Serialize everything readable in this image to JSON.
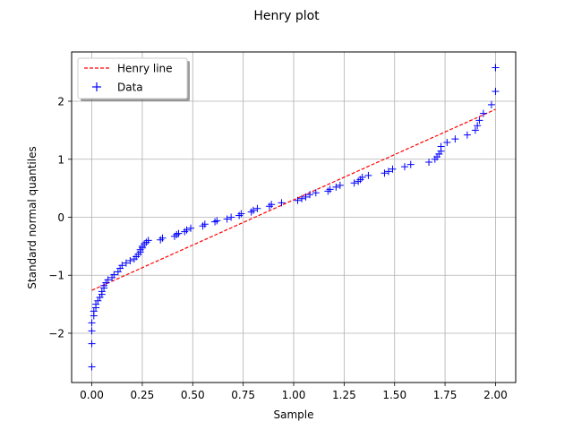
{
  "chart_data": {
    "type": "scatter",
    "title": "Henry plot",
    "xlabel": "Sample",
    "ylabel": "Standard normal quantiles",
    "xlim": [
      -0.1,
      2.1
    ],
    "ylim": [
      -2.85,
      2.85
    ],
    "xticks": [
      0.0,
      0.25,
      0.5,
      0.75,
      1.0,
      1.25,
      1.5,
      1.75,
      2.0
    ],
    "xtick_labels": [
      "0.00",
      "0.25",
      "0.50",
      "0.75",
      "1.00",
      "1.25",
      "1.50",
      "1.75",
      "2.00"
    ],
    "yticks": [
      -2,
      -1,
      0,
      1,
      2
    ],
    "ytick_labels": [
      "−2",
      "−1",
      "0",
      "1",
      "2"
    ],
    "grid": true,
    "legend": {
      "position": "upper-left",
      "entries": [
        "Henry line",
        "Data"
      ]
    },
    "series": [
      {
        "name": "Henry line",
        "kind": "line",
        "style": "dashed",
        "color": "#ff0000",
        "x": [
          0.0,
          2.0
        ],
        "y": [
          -1.26,
          1.86
        ]
      },
      {
        "name": "Data",
        "kind": "marker",
        "marker": "plus",
        "color": "#0000ff",
        "x": [
          0.0,
          0.0,
          0.0,
          0.0,
          0.01,
          0.01,
          0.02,
          0.02,
          0.03,
          0.04,
          0.05,
          0.05,
          0.06,
          0.06,
          0.07,
          0.08,
          0.1,
          0.11,
          0.13,
          0.14,
          0.15,
          0.17,
          0.19,
          0.21,
          0.22,
          0.23,
          0.24,
          0.24,
          0.25,
          0.25,
          0.26,
          0.27,
          0.28,
          0.34,
          0.35,
          0.41,
          0.42,
          0.43,
          0.46,
          0.47,
          0.49,
          0.55,
          0.56,
          0.61,
          0.62,
          0.67,
          0.69,
          0.73,
          0.74,
          0.79,
          0.8,
          0.82,
          0.88,
          0.89,
          0.94,
          1.02,
          1.04,
          1.06,
          1.08,
          1.11,
          1.17,
          1.18,
          1.21,
          1.23,
          1.3,
          1.32,
          1.33,
          1.34,
          1.37,
          1.45,
          1.47,
          1.49,
          1.55,
          1.58,
          1.67,
          1.7,
          1.71,
          1.72,
          1.73,
          1.73,
          1.76,
          1.8,
          1.86,
          1.9,
          1.91,
          1.92,
          1.94,
          1.98,
          2.0,
          2.0,
          2.0
        ],
        "y": [
          -2.58,
          -2.18,
          -1.96,
          -1.82,
          -1.7,
          -1.62,
          -1.56,
          -1.5,
          -1.44,
          -1.38,
          -1.33,
          -1.28,
          -1.22,
          -1.18,
          -1.13,
          -1.08,
          -1.04,
          -0.99,
          -0.94,
          -0.88,
          -0.83,
          -0.79,
          -0.75,
          -0.72,
          -0.68,
          -0.64,
          -0.6,
          -0.56,
          -0.53,
          -0.5,
          -0.46,
          -0.43,
          -0.4,
          -0.39,
          -0.36,
          -0.33,
          -0.3,
          -0.28,
          -0.25,
          -0.22,
          -0.19,
          -0.15,
          -0.12,
          -0.08,
          -0.06,
          -0.03,
          0.0,
          0.03,
          0.06,
          0.09,
          0.12,
          0.15,
          0.19,
          0.22,
          0.25,
          0.29,
          0.32,
          0.35,
          0.39,
          0.42,
          0.45,
          0.48,
          0.52,
          0.55,
          0.59,
          0.62,
          0.65,
          0.69,
          0.72,
          0.76,
          0.79,
          0.83,
          0.87,
          0.91,
          0.95,
          1.0,
          1.04,
          1.09,
          1.14,
          1.22,
          1.29,
          1.35,
          1.42,
          1.5,
          1.58,
          1.67,
          1.79,
          1.94,
          2.17,
          2.58,
          2.58
        ]
      }
    ]
  }
}
